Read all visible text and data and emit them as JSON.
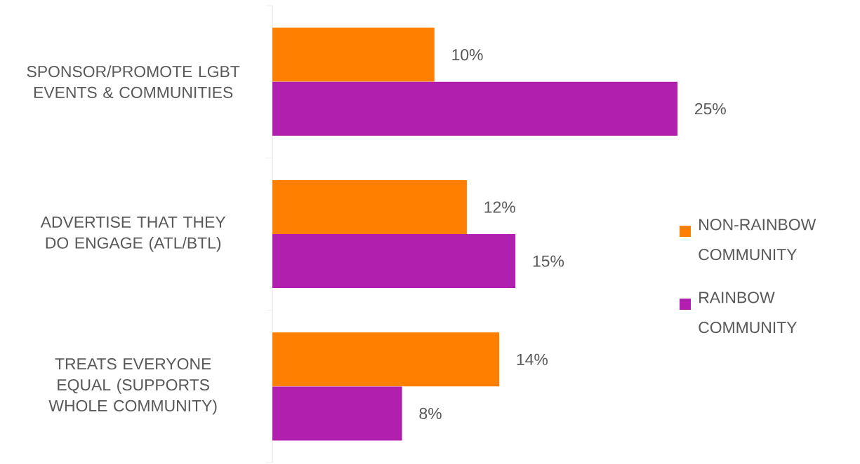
{
  "chart_data": {
    "type": "bar",
    "orientation": "horizontal",
    "categories": [
      "SPONSOR/PROMOTE LGBT EVENTS & COMMUNITIES",
      "ADVERTISE THAT THEY DO ENGAGE (ATL/BTL)",
      "TREATS EVERYONE EQUAL (SUPPORTS WHOLE COMMUNITY)"
    ],
    "series": [
      {
        "name": "NON-RAINBOW COMMUNITY",
        "color": "#ff8000",
        "values": [
          10,
          12,
          14
        ],
        "value_labels": [
          "10%",
          "12%",
          "14%"
        ]
      },
      {
        "name": "RAINBOW COMMUNITY",
        "color": "#b01fae",
        "values": [
          25,
          15,
          8
        ],
        "value_labels": [
          "25%",
          "15%",
          "8%"
        ]
      }
    ],
    "legend": "right",
    "grid": false
  }
}
